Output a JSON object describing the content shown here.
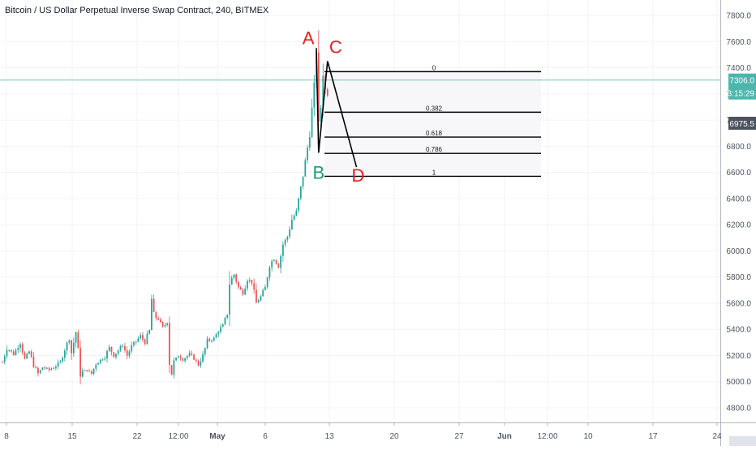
{
  "chart_data": {
    "type": "candlestick",
    "title": "Bitcoin / US Dollar Perpetual Inverse Swap Contract, 240, BITMEX",
    "xlabel": "",
    "ylabel": "",
    "ylim": [
      4700,
      7950
    ],
    "grid": true,
    "y_ticks": [
      "7800.0",
      "7600.0",
      "7400.0",
      "7200.0",
      "7000.0",
      "6800.0",
      "6600.0",
      "6400.0",
      "6200.0",
      "6000.0",
      "5800.0",
      "5600.0",
      "5400.0",
      "5200.0",
      "5000.0",
      "4800.0"
    ],
    "x_ticks": [
      "8",
      "15",
      "22",
      "12:00",
      "May",
      "6",
      "13",
      "20",
      "27",
      "Jun",
      "12:00",
      "10",
      "17",
      "24"
    ],
    "price_tag": {
      "value": "7306.0",
      "countdown": "03:15:29",
      "color": "#4db6ac"
    },
    "hover_tag": {
      "value": "6975.5",
      "color": "#4c525e"
    },
    "price_path": [
      [
        0,
        5150
      ],
      [
        2,
        5260
      ],
      [
        5,
        5210
      ],
      [
        8,
        5300
      ],
      [
        10,
        5170
      ],
      [
        12,
        5230
      ],
      [
        14,
        5130
      ],
      [
        16,
        5060
      ],
      [
        18,
        5110
      ],
      [
        21,
        5090
      ],
      [
        24,
        5120
      ],
      [
        26,
        5150
      ],
      [
        28,
        5250
      ],
      [
        30,
        5330
      ],
      [
        31,
        5220
      ],
      [
        33,
        5380
      ],
      [
        35,
        5070
      ],
      [
        38,
        5090
      ],
      [
        40,
        5060
      ],
      [
        42,
        5140
      ],
      [
        46,
        5190
      ],
      [
        48,
        5260
      ],
      [
        50,
        5200
      ],
      [
        52,
        5240
      ],
      [
        54,
        5280
      ],
      [
        56,
        5200
      ],
      [
        58,
        5270
      ],
      [
        60,
        5310
      ],
      [
        62,
        5350
      ],
      [
        64,
        5300
      ],
      [
        66,
        5390
      ],
      [
        67,
        5630
      ],
      [
        68,
        5500
      ],
      [
        70,
        5480
      ],
      [
        72,
        5410
      ],
      [
        74,
        5460
      ],
      [
        75,
        5160
      ],
      [
        76,
        5060
      ],
      [
        77,
        5150
      ],
      [
        79,
        5200
      ],
      [
        81,
        5170
      ],
      [
        84,
        5210
      ],
      [
        86,
        5180
      ],
      [
        88,
        5130
      ],
      [
        90,
        5200
      ],
      [
        92,
        5310
      ],
      [
        95,
        5330
      ],
      [
        97,
        5390
      ],
      [
        99,
        5430
      ],
      [
        101,
        5520
      ],
      [
        102,
        5760
      ],
      [
        104,
        5820
      ],
      [
        106,
        5720
      ],
      [
        108,
        5680
      ],
      [
        110,
        5790
      ],
      [
        112,
        5760
      ],
      [
        114,
        5600
      ],
      [
        116,
        5650
      ],
      [
        118,
        5720
      ],
      [
        120,
        5900
      ],
      [
        122,
        5940
      ],
      [
        124,
        5880
      ],
      [
        126,
        6050
      ],
      [
        128,
        6110
      ],
      [
        130,
        6240
      ],
      [
        132,
        6300
      ],
      [
        134,
        6480
      ],
      [
        136,
        6680
      ],
      [
        138,
        6900
      ],
      [
        140,
        7250
      ],
      [
        141,
        7550
      ],
      [
        142,
        6880
      ],
      [
        143,
        7100
      ],
      [
        144,
        7380
      ],
      [
        145,
        7230
      ],
      [
        146,
        7200
      ]
    ],
    "abcd_pattern": {
      "points": [
        {
          "label": "A",
          "x": 141,
          "y": 7550,
          "color": "#e3201b"
        },
        {
          "label": "B",
          "x": 142,
          "y": 6750,
          "color": "#1d9e74"
        },
        {
          "label": "C",
          "x": 146,
          "y": 7450,
          "color": "#e3201b"
        },
        {
          "label": "D",
          "x": 159,
          "y": 6640,
          "color": "#e3201b"
        }
      ]
    },
    "fib_levels": [
      {
        "label": "0",
        "value": 7370
      },
      {
        "label": "0.382",
        "value": 7060
      },
      {
        "label": "0.618",
        "value": 6870
      },
      {
        "label": "0.786",
        "value": 6745
      },
      {
        "label": "1",
        "value": 6570
      }
    ]
  }
}
